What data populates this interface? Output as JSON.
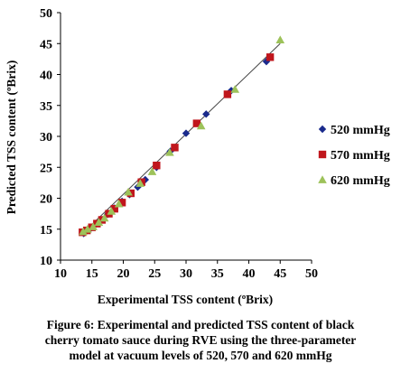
{
  "chart_data": {
    "type": "scatter",
    "title": "",
    "xlabel": "Experimental TSS content (ºBrix)",
    "ylabel": "Predicted TSS content (ºBrix)",
    "xlim": [
      10,
      50
    ],
    "ylim": [
      10,
      50
    ],
    "xticks": [
      10,
      15,
      20,
      25,
      30,
      35,
      40,
      45,
      50
    ],
    "yticks": [
      10,
      15,
      20,
      25,
      30,
      35,
      40,
      45,
      50
    ],
    "grid": false,
    "legend_position": "right",
    "fit_line": {
      "x": [
        13.5,
        45
      ],
      "y": [
        14.3,
        45
      ]
    },
    "series": [
      {
        "name": "520 mmHg",
        "marker": "diamond",
        "color": "#1a2a8c",
        "points": [
          [
            13.7,
            14.3
          ],
          [
            14.6,
            14.9
          ],
          [
            15.5,
            15.7
          ],
          [
            16.5,
            16.5
          ],
          [
            17.5,
            17.4
          ],
          [
            18.6,
            18.4
          ],
          [
            19.8,
            19.5
          ],
          [
            21.0,
            20.6
          ],
          [
            22.3,
            21.8
          ],
          [
            23.5,
            23.0
          ],
          [
            25.3,
            25.0
          ],
          [
            27.5,
            27.6
          ],
          [
            30.0,
            30.5
          ],
          [
            33.2,
            33.6
          ],
          [
            37.2,
            37.4
          ],
          [
            42.8,
            42.1
          ]
        ]
      },
      {
        "name": "570 mmHg",
        "marker": "square",
        "color": "#c0161c",
        "points": [
          [
            13.5,
            14.5
          ],
          [
            14.2,
            14.8
          ],
          [
            15.0,
            15.3
          ],
          [
            15.8,
            15.9
          ],
          [
            16.6,
            16.5
          ],
          [
            17.7,
            17.5
          ],
          [
            18.6,
            18.3
          ],
          [
            19.8,
            19.3
          ],
          [
            21.2,
            20.8
          ],
          [
            22.9,
            22.6
          ],
          [
            25.3,
            25.3
          ],
          [
            28.2,
            28.2
          ],
          [
            31.7,
            32.1
          ],
          [
            36.6,
            36.8
          ],
          [
            43.4,
            42.8
          ]
        ]
      },
      {
        "name": "620 mmHg",
        "marker": "triangle",
        "color": "#9dc25a",
        "points": [
          [
            13.6,
            14.6
          ],
          [
            14.3,
            15.0
          ],
          [
            15.2,
            15.4
          ],
          [
            16.1,
            16.1
          ],
          [
            17.0,
            16.8
          ],
          [
            18.1,
            17.9
          ],
          [
            19.3,
            19.1
          ],
          [
            20.8,
            21.0
          ],
          [
            22.7,
            22.4
          ],
          [
            24.6,
            24.3
          ],
          [
            27.4,
            27.4
          ],
          [
            32.4,
            31.7
          ],
          [
            37.8,
            37.6
          ],
          [
            45.0,
            45.6
          ]
        ]
      }
    ]
  },
  "caption": {
    "line1": "Figure 6: Experimental and predicted TSS content of black",
    "line2": "cherry tomato sauce during RVE using the three-parameter",
    "line3": "model at vacuum levels of 520, 570 and 620 mmHg"
  }
}
